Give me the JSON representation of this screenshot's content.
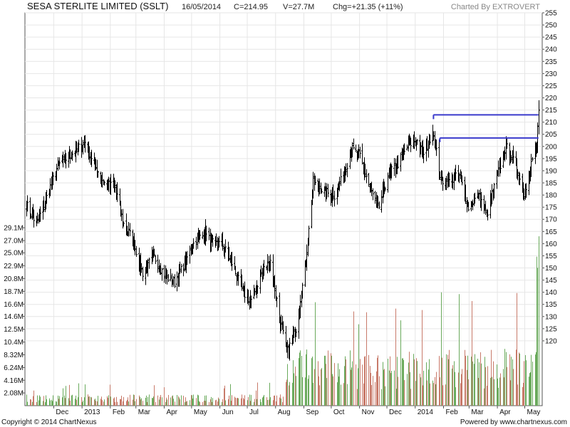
{
  "header": {
    "title": "SESA STERLITE LIMITED (SSLT)",
    "date": "16/05/2014",
    "close": "C=214.95",
    "volume": "V=27.7M",
    "change": "Chg=+21.35 (+11%)",
    "credit": "Charted By EXTROVERT"
  },
  "footer": {
    "copyright": "Copyright © 2014 ChartNexus",
    "powered": "Powered by www.chartnexus.com"
  },
  "colors": {
    "price_bar": "#000000",
    "volume_up": "#6aaa5c",
    "volume_down": "#c87a6a",
    "trend_line": "#3a3acc",
    "grid": "#e6e6e6",
    "frame": "#555555"
  },
  "chart_data": {
    "type": "ohlc",
    "title": "SESA STERLITE LIMITED (SSLT)",
    "price_axis": {
      "range": [
        115,
        255
      ],
      "ticks": [
        "255",
        "250",
        "245",
        "240",
        "235",
        "230",
        "225",
        "220",
        "215",
        "210",
        "205",
        "200",
        "195",
        "190",
        "185",
        "180",
        "175",
        "170",
        "165",
        "160",
        "155",
        "150",
        "145",
        "140",
        "135",
        "130",
        "125",
        "120"
      ]
    },
    "volume_axis": {
      "unit": "M",
      "ticks": [
        "29.1M",
        "27.0M",
        "25.0M",
        "22.9M",
        "20.8M",
        "18.7M",
        "16.6M",
        "14.6M",
        "12.5M",
        "10.4M",
        "8.32M",
        "6.24M",
        "4.16M",
        "2.08M"
      ]
    },
    "x_axis": {
      "labels": [
        "Dec",
        "2013",
        "Feb",
        "Mar",
        "Apr",
        "May",
        "Jun",
        "Jul",
        "Aug",
        "Sep",
        "Oct",
        "Nov",
        "Dec",
        "2014",
        "Feb",
        "Mar",
        "Apr",
        "May"
      ]
    },
    "price_anchors": [
      [
        "2012-11-01",
        176
      ],
      [
        "2012-11-12",
        168
      ],
      [
        "2012-11-22",
        178
      ],
      [
        "2012-12-05",
        192
      ],
      [
        "2012-12-14",
        195
      ],
      [
        "2012-12-24",
        198
      ],
      [
        "2013-01-04",
        202
      ],
      [
        "2013-01-15",
        192
      ],
      [
        "2013-01-25",
        185
      ],
      [
        "2013-02-06",
        183
      ],
      [
        "2013-02-15",
        168
      ],
      [
        "2013-02-25",
        162
      ],
      [
        "2013-03-08",
        148
      ],
      [
        "2013-03-20",
        155
      ],
      [
        "2013-04-01",
        147
      ],
      [
        "2013-04-12",
        144
      ],
      [
        "2013-04-22",
        151
      ],
      [
        "2013-05-03",
        160
      ],
      [
        "2013-05-13",
        165
      ],
      [
        "2013-05-24",
        160
      ],
      [
        "2013-06-03",
        160
      ],
      [
        "2013-06-14",
        152
      ],
      [
        "2013-06-26",
        140
      ],
      [
        "2013-07-05",
        136
      ],
      [
        "2013-07-16",
        148
      ],
      [
        "2013-07-26",
        153
      ],
      [
        "2013-08-05",
        130
      ],
      [
        "2013-08-13",
        115
      ],
      [
        "2013-08-23",
        125
      ],
      [
        "2013-09-02",
        150
      ],
      [
        "2013-09-11",
        185
      ],
      [
        "2013-09-25",
        181
      ],
      [
        "2013-10-04",
        180
      ],
      [
        "2013-10-14",
        188
      ],
      [
        "2013-10-23",
        199
      ],
      [
        "2013-11-01",
        196
      ],
      [
        "2013-11-13",
        182
      ],
      [
        "2013-11-21",
        174
      ],
      [
        "2013-12-02",
        188
      ],
      [
        "2013-12-13",
        193
      ],
      [
        "2013-12-23",
        200
      ],
      [
        "2014-01-02",
        203
      ],
      [
        "2014-01-10",
        196
      ],
      [
        "2014-01-20",
        207
      ],
      [
        "2014-01-29",
        186
      ],
      [
        "2014-02-07",
        186
      ],
      [
        "2014-02-18",
        188
      ],
      [
        "2014-02-28",
        175
      ],
      [
        "2014-03-11",
        180
      ],
      [
        "2014-03-20",
        172
      ],
      [
        "2014-03-31",
        187
      ],
      [
        "2014-04-10",
        200
      ],
      [
        "2014-04-21",
        192
      ],
      [
        "2014-04-30",
        180
      ],
      [
        "2014-05-09",
        195
      ],
      [
        "2014-05-14",
        200
      ],
      [
        "2014-05-16",
        214.95
      ]
    ],
    "volume_regimes": [
      [
        "2012-11-01",
        "2013-08-10",
        1.2
      ],
      [
        "2013-08-10",
        "2014-05-14",
        6.0
      ],
      [
        "2014-05-14",
        "2014-05-16",
        27.7
      ]
    ],
    "trend_lines": [
      {
        "from": [
          "2014-01-21",
          213
        ],
        "to": [
          "2014-05-16",
          213
        ]
      },
      {
        "from": [
          "2014-01-28",
          203.5
        ],
        "to": [
          "2014-05-16",
          203.5
        ]
      }
    ]
  }
}
